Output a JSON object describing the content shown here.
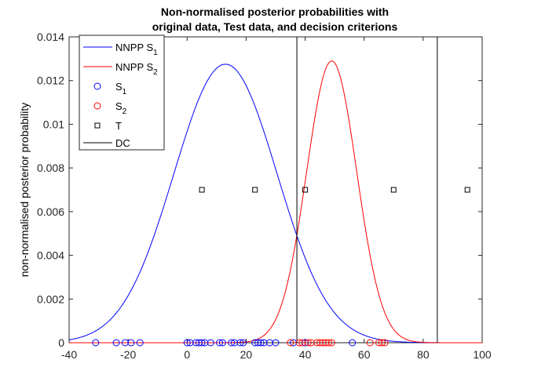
{
  "chart_data": {
    "type": "line",
    "title": [
      "Non-normalised posterior probabilities with",
      "original data, Test data, and decision criterions"
    ],
    "xlabel": "",
    "ylabel": "non-normalised posterior probability",
    "xlim": [
      -40,
      100
    ],
    "ylim": [
      0,
      0.014
    ],
    "xticks": [
      -40,
      -20,
      0,
      20,
      40,
      60,
      80,
      100
    ],
    "yticks": [
      0,
      0.002,
      0.004,
      0.006,
      0.008,
      0.01,
      0.012,
      0.014
    ],
    "xtick_labels": [
      "-40",
      "-20",
      "0",
      "20",
      "40",
      "60",
      "80",
      "100"
    ],
    "ytick_labels": [
      "0",
      "0.002",
      "0.004",
      "0.006",
      "0.008",
      "0.01",
      "0.012",
      "0.014"
    ],
    "grid": false,
    "legend_position": "top-left",
    "curves": [
      {
        "name": "NNPP S",
        "sub": "1",
        "color": "#0000ff",
        "peak": 0.01275,
        "mean": 13,
        "sd": 17.5
      },
      {
        "name": "NNPP S",
        "sub": "2",
        "color": "#ff0000",
        "peak": 0.0129,
        "mean": 49,
        "sd": 8.5
      }
    ],
    "samples": [
      {
        "name": "S",
        "sub": "1",
        "color": "#0000ff",
        "y": 0,
        "x": [
          -31,
          -24,
          -21,
          -19,
          -16,
          0,
          1,
          3,
          4,
          5,
          6,
          8,
          11,
          12,
          15,
          16,
          18,
          19,
          23,
          24,
          25,
          26,
          28,
          30,
          36,
          40,
          56
        ]
      },
      {
        "name": "S",
        "sub": "2",
        "color": "#ff0000",
        "y": 0,
        "x": [
          35,
          38,
          39,
          41,
          42,
          44,
          45,
          46,
          47,
          48,
          49,
          62,
          65,
          66,
          67
        ]
      }
    ],
    "test_points": {
      "name": "T",
      "color": "#000000",
      "x": [
        5,
        23,
        40,
        70,
        95
      ],
      "y": [
        0.007,
        0.007,
        0.007,
        0.007,
        0.007
      ]
    },
    "decision_criteria": {
      "name": "DC",
      "color": "#000000",
      "x": [
        37.2,
        84.8
      ]
    }
  }
}
